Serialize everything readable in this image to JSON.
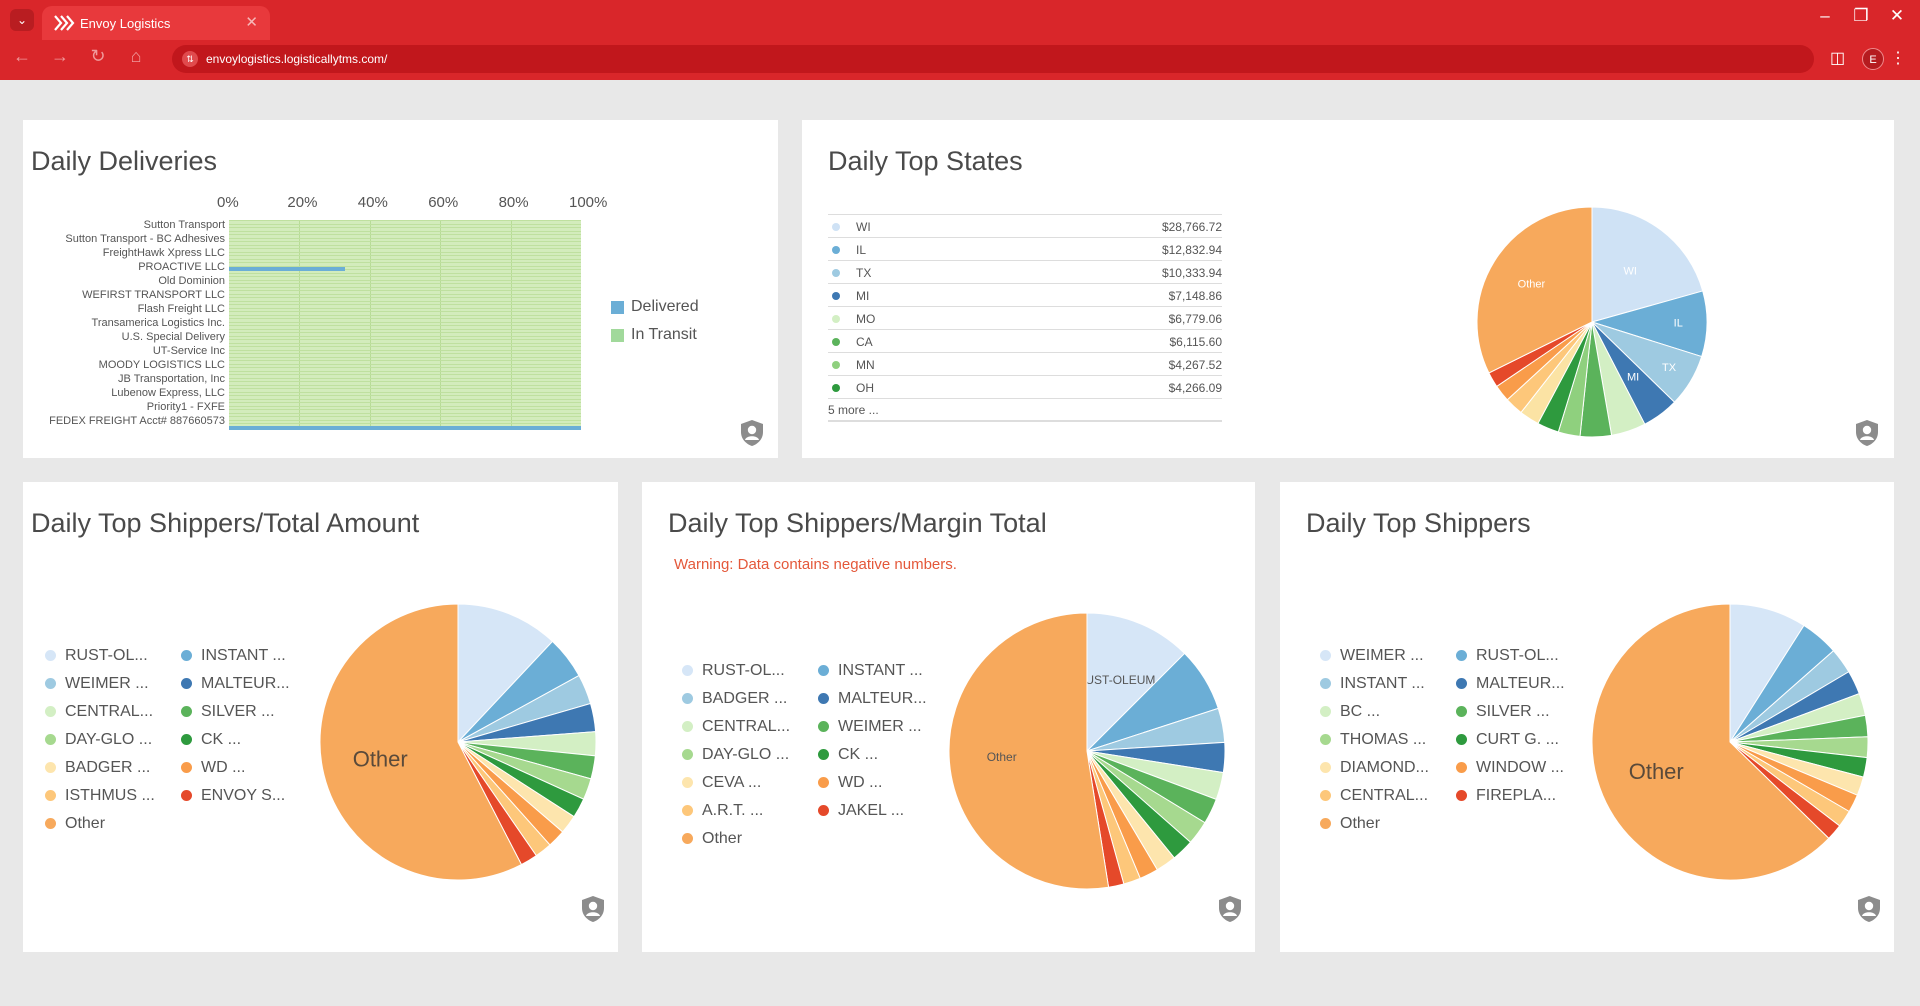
{
  "browser": {
    "tab_title": "Envoy Logistics",
    "url": "envoylogistics.logisticallytms.com/",
    "avatar_letter": "E",
    "accent": "#d9262a"
  },
  "cards": {
    "deliveries": {
      "title": "Daily Deliveries",
      "axis": [
        "0%",
        "20%",
        "40%",
        "60%",
        "80%",
        "100%"
      ],
      "legend": {
        "delivered": "Delivered",
        "in_transit": "In Transit"
      }
    },
    "states": {
      "title": "Daily Top States",
      "more": "5 more ..."
    },
    "shippers_total": {
      "title": "Daily Top Shippers/Total Amount"
    },
    "shippers_margin": {
      "title": "Daily Top Shippers/Margin Total",
      "warning": "Warning: Data contains negative numbers."
    },
    "shippers": {
      "title": "Daily Top Shippers"
    }
  },
  "chart_data": [
    {
      "type": "bar",
      "orientation": "horizontal",
      "stacked": "percent",
      "title": "Daily Deliveries",
      "categories": [
        "Sutton Transport",
        "Sutton Transport - BC Adhesives",
        "FreightHawk Xpress LLC",
        "PROACTIVE LLC",
        "Old Dominion",
        "WEFIRST TRANSPORT LLC",
        "Flash Freight LLC",
        "Transamerica Logistics Inc.",
        "U.S. Special Delivery",
        "UT-Service Inc",
        "MOODY LOGISTICS LLC",
        "JB Transportation, Inc",
        "Lubenow Express, LLC",
        "Priority1 - FXFE",
        "FEDEX FREIGHT  Acct# 887660573"
      ],
      "series": [
        {
          "name": "Delivered",
          "color": "#6baed6",
          "values": [
            0,
            0,
            0,
            33,
            0,
            0,
            0,
            0,
            0,
            0,
            0,
            0,
            0,
            0,
            100
          ]
        },
        {
          "name": "In Transit",
          "color": "#a1d99b",
          "values": [
            100,
            100,
            100,
            67,
            100,
            100,
            100,
            100,
            100,
            100,
            100,
            100,
            100,
            100,
            0
          ]
        }
      ],
      "xlim": [
        0,
        100
      ]
    },
    {
      "type": "pie",
      "title": "Daily Top States",
      "rows": [
        {
          "label": "WI",
          "value": "$28,766.72",
          "color": "#cfe2f5"
        },
        {
          "label": "IL",
          "value": "$12,832.94",
          "color": "#6baed6"
        },
        {
          "label": "TX",
          "value": "$10,333.94",
          "color": "#9ecae1"
        },
        {
          "label": "MI",
          "value": "$7,148.86",
          "color": "#3e78b2"
        },
        {
          "label": "MO",
          "value": "$6,779.06",
          "color": "#d3efc4"
        },
        {
          "label": "CA",
          "value": "$6,115.60",
          "color": "#5bb35b"
        },
        {
          "label": "MN",
          "value": "$4,267.52",
          "color": "#8fd07e"
        },
        {
          "label": "OH",
          "value": "$4,266.09",
          "color": "#2e9a3e"
        }
      ],
      "slices": [
        {
          "label": "WI",
          "value": 28766.72,
          "color": "#cfe2f5",
          "show_label": true
        },
        {
          "label": "IL",
          "value": 12832.94,
          "color": "#6baed6",
          "show_label": true
        },
        {
          "label": "TX",
          "value": 10333.94,
          "color": "#9ecae1",
          "show_label": true
        },
        {
          "label": "MI",
          "value": 7148.86,
          "color": "#3e78b2",
          "show_label": true
        },
        {
          "label": "MO",
          "value": 6779.06,
          "color": "#d3efc4",
          "show_label": false
        },
        {
          "label": "CA",
          "value": 6115.6,
          "color": "#5bb35b",
          "show_label": false
        },
        {
          "label": "MN",
          "value": 4267.52,
          "color": "#8fd07e",
          "show_label": false
        },
        {
          "label": "OH",
          "value": 4266.09,
          "color": "#2e9a3e",
          "show_label": false
        },
        {
          "label": "",
          "value": 3900,
          "color": "#fbe3a4",
          "show_label": false
        },
        {
          "label": "",
          "value": 3600,
          "color": "#fdc77a",
          "show_label": false
        },
        {
          "label": "",
          "value": 3300,
          "color": "#f99c4a",
          "show_label": false
        },
        {
          "label": "",
          "value": 3000,
          "color": "#e5492a",
          "show_label": false
        },
        {
          "label": "Other",
          "value": 45000,
          "color": "#f7a95c",
          "show_label": true
        }
      ]
    },
    {
      "type": "pie",
      "title": "Daily Top Shippers/Total Amount",
      "legend": [
        [
          "RUST-OL...",
          "INSTANT ..."
        ],
        [
          "WEIMER ...",
          "MALTEUR..."
        ],
        [
          "CENTRAL...",
          "SILVER ..."
        ],
        [
          "DAY-GLO ...",
          "CK ..."
        ],
        [
          "BADGER ...",
          "WD ..."
        ],
        [
          "ISTHMUS ...",
          "ENVOY S..."
        ],
        [
          "Other"
        ]
      ],
      "legend_colors": [
        [
          "#d6e6f7",
          "#6baed6"
        ],
        [
          "#9ecae1",
          "#3e78b2"
        ],
        [
          "#d3efc4",
          "#5bb35b"
        ],
        [
          "#a6d98f",
          "#2e9a3e"
        ],
        [
          "#fde5ad",
          "#f99c4a"
        ],
        [
          "#fdc77a",
          "#e5492a"
        ],
        [
          "#f7a95c"
        ]
      ],
      "slices": [
        {
          "label": "RUST-OL...",
          "value": 12,
          "color": "#d6e6f7"
        },
        {
          "label": "INSTANT ...",
          "value": 5,
          "color": "#6baed6"
        },
        {
          "label": "WEIMER ...",
          "value": 3.5,
          "color": "#9ecae1"
        },
        {
          "label": "MALTEUR...",
          "value": 3.3,
          "color": "#3e78b2"
        },
        {
          "label": "CENTRAL...",
          "value": 2.8,
          "color": "#d3efc4"
        },
        {
          "label": "SILVER ...",
          "value": 2.7,
          "color": "#5bb35b"
        },
        {
          "label": "DAY-GLO ...",
          "value": 2.5,
          "color": "#a6d98f"
        },
        {
          "label": "CK ...",
          "value": 2.3,
          "color": "#2e9a3e"
        },
        {
          "label": "BADGER ...",
          "value": 2.2,
          "color": "#fde5ad"
        },
        {
          "label": "WD ...",
          "value": 2.1,
          "color": "#f99c4a"
        },
        {
          "label": "ISTHMUS ...",
          "value": 2.0,
          "color": "#fdc77a"
        },
        {
          "label": "ENVOY S...",
          "value": 2.0,
          "color": "#e5492a"
        },
        {
          "label": "Other",
          "value": 57.6,
          "color": "#f7a95c",
          "show_label": true
        }
      ]
    },
    {
      "type": "pie",
      "title": "Daily Top Shippers/Margin Total",
      "legend": [
        [
          "RUST-OL...",
          "INSTANT ..."
        ],
        [
          "BADGER ...",
          "MALTEUR..."
        ],
        [
          "CENTRAL...",
          "WEIMER ..."
        ],
        [
          "DAY-GLO ...",
          "CK ..."
        ],
        [
          "CEVA ...",
          "WD ..."
        ],
        [
          "A.R.T. ...",
          "JAKEL ..."
        ],
        [
          "Other"
        ]
      ],
      "legend_colors": [
        [
          "#d6e6f7",
          "#6baed6"
        ],
        [
          "#9ecae1",
          "#3e78b2"
        ],
        [
          "#d3efc4",
          "#5bb35b"
        ],
        [
          "#a6d98f",
          "#2e9a3e"
        ],
        [
          "#fde5ad",
          "#f99c4a"
        ],
        [
          "#fdc77a",
          "#e5492a"
        ],
        [
          "#f7a95c"
        ]
      ],
      "slices": [
        {
          "label": "RUST-OLEUM",
          "value": 12.5,
          "color": "#d6e6f7",
          "show_label": true
        },
        {
          "label": "INSTANT ...",
          "value": 7.5,
          "color": "#6baed6"
        },
        {
          "label": "BADGER ...",
          "value": 4.0,
          "color": "#9ecae1"
        },
        {
          "label": "MALTEUR...",
          "value": 3.5,
          "color": "#3e78b2"
        },
        {
          "label": "CENTRAL...",
          "value": 3.2,
          "color": "#d3efc4"
        },
        {
          "label": "WEIMER ...",
          "value": 3.0,
          "color": "#5bb35b"
        },
        {
          "label": "DAY-GLO ...",
          "value": 2.8,
          "color": "#a6d98f"
        },
        {
          "label": "CK ...",
          "value": 2.6,
          "color": "#2e9a3e"
        },
        {
          "label": "CEVA ...",
          "value": 2.4,
          "color": "#fde5ad"
        },
        {
          "label": "WD ...",
          "value": 2.2,
          "color": "#f99c4a"
        },
        {
          "label": "A.R.T. ...",
          "value": 2.0,
          "color": "#fdc77a"
        },
        {
          "label": "JAKEL ...",
          "value": 1.8,
          "color": "#e5492a"
        },
        {
          "label": "Other",
          "value": 52.5,
          "color": "#f7a95c",
          "show_label": true
        }
      ]
    },
    {
      "type": "pie",
      "title": "Daily Top Shippers",
      "legend": [
        [
          "WEIMER ...",
          "RUST-OL..."
        ],
        [
          "INSTANT ...",
          "MALTEUR..."
        ],
        [
          "BC ...",
          "SILVER ..."
        ],
        [
          "THOMAS ...",
          "CURT G. ..."
        ],
        [
          "DIAMOND...",
          "WINDOW ..."
        ],
        [
          "CENTRAL...",
          "FIREPLA..."
        ],
        [
          "Other"
        ]
      ],
      "legend_colors": [
        [
          "#d6e6f7",
          "#6baed6"
        ],
        [
          "#9ecae1",
          "#3e78b2"
        ],
        [
          "#d3efc4",
          "#5bb35b"
        ],
        [
          "#a6d98f",
          "#2e9a3e"
        ],
        [
          "#fde5ad",
          "#f99c4a"
        ],
        [
          "#fdc77a",
          "#e5492a"
        ],
        [
          "#f7a95c"
        ]
      ],
      "slices": [
        {
          "label": "WEIMER ...",
          "value": 9.0,
          "color": "#d6e6f7"
        },
        {
          "label": "RUST-OL...",
          "value": 4.5,
          "color": "#6baed6"
        },
        {
          "label": "INSTANT ...",
          "value": 3.0,
          "color": "#9ecae1"
        },
        {
          "label": "MALTEUR...",
          "value": 2.8,
          "color": "#3e78b2"
        },
        {
          "label": "BC ...",
          "value": 2.6,
          "color": "#d3efc4"
        },
        {
          "label": "SILVER ...",
          "value": 2.5,
          "color": "#5bb35b"
        },
        {
          "label": "THOMAS ...",
          "value": 2.4,
          "color": "#a6d98f"
        },
        {
          "label": "CURT G. ...",
          "value": 2.3,
          "color": "#2e9a3e"
        },
        {
          "label": "DIAMOND...",
          "value": 2.2,
          "color": "#fde5ad"
        },
        {
          "label": "WINDOW ...",
          "value": 2.1,
          "color": "#f99c4a"
        },
        {
          "label": "CENTRAL...",
          "value": 2.0,
          "color": "#fdc77a"
        },
        {
          "label": "FIREPLA...",
          "value": 1.9,
          "color": "#e5492a"
        },
        {
          "label": "Other",
          "value": 62.7,
          "color": "#f7a95c",
          "show_label": true
        }
      ]
    }
  ]
}
